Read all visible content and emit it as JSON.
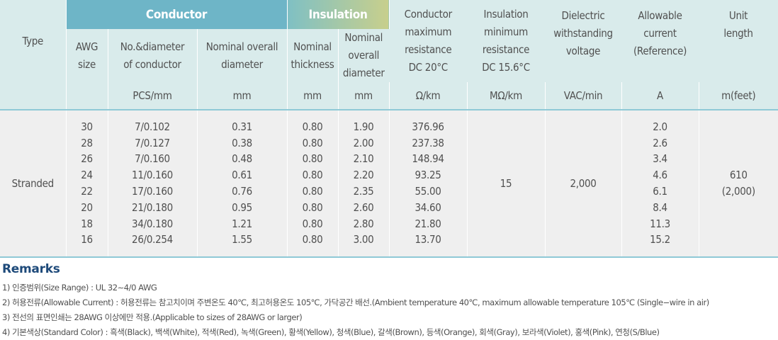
{
  "table": {
    "col_type": "Type",
    "group_conductor": "Conductor",
    "group_insulation": "Insulation",
    "col_max_resistance": "Conductor maximum resistance DC 20°C",
    "col_min_insulation_resistance": "Insulation minimum resistance DC 15.6°C",
    "col_dielectric": "Dielectric withstanding voltage",
    "col_allowable_current": "Allowable current (Reference)",
    "col_unit_length": "Unit length",
    "sub_awg": "AWG size",
    "sub_no_diameter": "No.&diameter of conductor",
    "sub_nominal_overall": "Nominal overall diameter",
    "sub_ins_thickness": "Nominal thickness",
    "sub_ins_overall": "Nominal overall diameter",
    "units": {
      "no_diameter": "PCS/mm",
      "cond_overall": "mm",
      "ins_thickness": "mm",
      "ins_overall": "mm",
      "resistance": "Ω/km",
      "insulation_resistance": "MΩ/km",
      "dielectric": "VAC/min",
      "current": "A",
      "length": "m(feet)"
    },
    "type_value": "Stranded",
    "insulation_resistance_value": "15",
    "dielectric_value": "2,000",
    "unit_length_value_1": "610",
    "unit_length_value_2": "(2,000)",
    "columns": {
      "awg": [
        "30",
        "28",
        "26",
        "24",
        "22",
        "20",
        "18",
        "16"
      ],
      "no_diameter": [
        "7/0.102",
        "7/0.127",
        "7/0.160",
        "11/0.160",
        "17/0.160",
        "21/0.180",
        "34/0.180",
        "26/0.254"
      ],
      "cond_overall": [
        "0.31",
        "0.38",
        "0.48",
        "0.61",
        "0.76",
        "0.95",
        "1.21",
        "1.55"
      ],
      "ins_thickness": [
        "0.80",
        "0.80",
        "0.80",
        "0.80",
        "0.80",
        "0.80",
        "0.80",
        "0.80"
      ],
      "ins_overall": [
        "1.90",
        "2.00",
        "2.10",
        "2.20",
        "2.35",
        "2.60",
        "2.80",
        "3.00"
      ],
      "resistance": [
        "376.96",
        "237.38",
        "148.94",
        "93.25",
        "55.00",
        "34.60",
        "21.80",
        "13.70"
      ],
      "current": [
        "2.0",
        "2.6",
        "3.4",
        "4.6",
        "6.1",
        "8.4",
        "11.3",
        "15.2"
      ]
    }
  },
  "remarks": {
    "title": "Remarks",
    "notes": [
      "1) 인증범위(Size Range) : UL 32∼4/0 AWG",
      "2) 허용전류(Allowable Current) : 허용전류는 참고치이며 주변온도 40℃, 최고허용온도 105℃, 가닥공간 배선.(Ambient temperature 40℃, maximum allowable temperature 105℃ (Single−wire in air)",
      "3) 전선의 표면인쇄는 28AWG 이상에만 적용.(Applicable to sizes of 28AWG or larger)",
      "4) 기본색상(Standard Color) : 흑색(Black), 백색(White), 적색(Red), 녹색(Green), 황색(Yellow), 청색(Blue), 갈색(Brown), 등색(Orange), 회색(Gray), 보라색(Violet), 홍색(Pink), 연청(S/Blue)"
    ]
  }
}
